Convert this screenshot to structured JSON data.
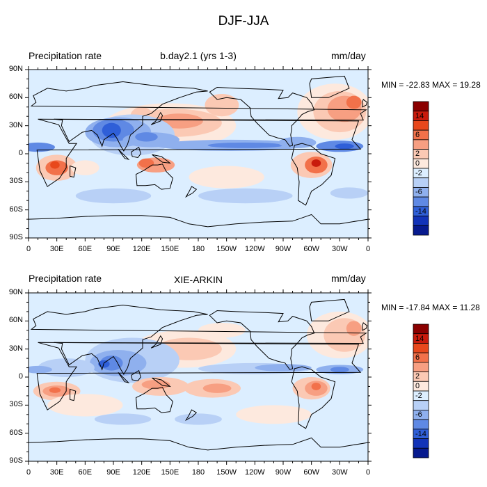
{
  "figure": {
    "title": "DJF-JJA"
  },
  "axes": {
    "lat_labels": [
      "90N",
      "60N",
      "30N",
      "0",
      "30S",
      "60S",
      "90S"
    ],
    "lon_labels": [
      "0",
      "30E",
      "60E",
      "90E",
      "120E",
      "150E",
      "180",
      "150W",
      "120W",
      "90W",
      "60W",
      "30W",
      "0"
    ]
  },
  "colorbar": {
    "labels": [
      "14",
      "6",
      "2",
      "0",
      "-2",
      "-6",
      "-14"
    ],
    "colors": [
      "#8b0000",
      "#c81a0c",
      "#e8481c",
      "#f2714a",
      "#f79f82",
      "#fbc9b4",
      "#fde9de",
      "#dceeff",
      "#b8d0f6",
      "#8fb0ee",
      "#5f89e4",
      "#2f5fd8",
      "#1233b8",
      "#071a8e"
    ]
  },
  "colors": {
    "ocean_base": "#dceeff",
    "coast": "#000000",
    "frame": "#000000"
  },
  "panels": [
    {
      "left_label": "Precipitation rate",
      "center_label": "b.day2.1 (yrs 1-3)",
      "right_label": "mm/day",
      "min_max": "MIN = -22.83 MAX =  19.28"
    },
    {
      "left_label": "Precipitation rate",
      "center_label": "XIE-ARKIN",
      "right_label": "mm/day",
      "min_max": "MIN = -17.84 MAX =  11.28"
    }
  ]
}
